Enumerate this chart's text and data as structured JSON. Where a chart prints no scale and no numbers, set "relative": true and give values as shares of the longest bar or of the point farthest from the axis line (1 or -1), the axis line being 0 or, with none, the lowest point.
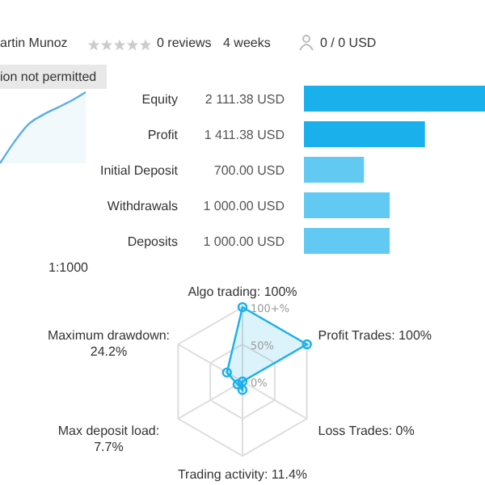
{
  "chart_data": [
    {
      "type": "other",
      "annotations": [
        "artin Munoz",
        "0 reviews",
        "4 weeks",
        "0 / 0 USD",
        "ion not permitted",
        "1:1000"
      ]
    },
    {
      "type": "area",
      "relative": true,
      "categories": [
        null,
        null,
        null,
        null,
        null,
        null,
        null
      ],
      "values": [
        0,
        0.3,
        0.55,
        0.68,
        0.78,
        0.88,
        1
      ],
      "color": "#5aaee6"
    },
    {
      "type": "bar",
      "orientation": "horizontal",
      "categories": [
        "Equity",
        "Profit",
        "Initial Deposit",
        "Withdrawals",
        "Deposits"
      ],
      "values": [
        2111.38,
        1411.38,
        700,
        1000,
        1000
      ],
      "colors": [
        "#1ab0ec",
        "#1ab0ec",
        "#62c9f2",
        "#62c9f2",
        "#62c9f2"
      ],
      "value_labels": [
        "2 111.38 USD",
        "1 411.38 USD",
        "700.00 USD",
        "1 000.00 USD",
        "1 000.00 USD"
      ]
    },
    {
      "type": "radar",
      "categories": [
        "Algo trading: 100%",
        "Profit Trades: 100%",
        "Loss Trades: 0%",
        "Trading activity: 11.4%",
        "Max deposit load: 7.7%",
        "Maximum drawdown: 24.2%"
      ],
      "values": [
        100,
        100,
        0,
        11.4,
        7.7,
        24.2
      ],
      "color": "#1ab0ec",
      "ylim": [
        0,
        100
      ],
      "yticks": [
        {
          "value": 0,
          "label": "0%"
        },
        {
          "value": 50,
          "label": "50%"
        },
        {
          "value": 100,
          "label": "100+%"
        }
      ],
      "grid": true,
      "marker": "circle"
    }
  ]
}
